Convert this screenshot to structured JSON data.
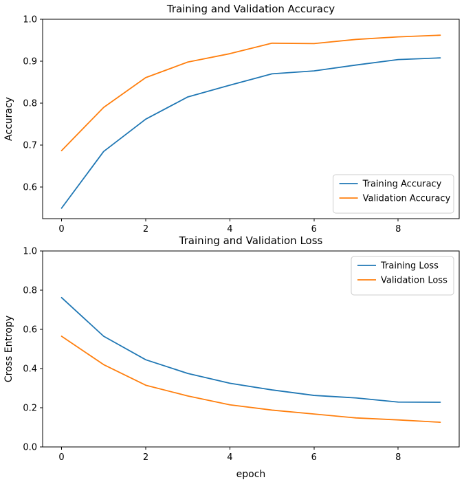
{
  "figure": {
    "background": "#ffffff"
  },
  "chart_data": [
    {
      "id": "accuracy",
      "type": "line",
      "title": "Training and Validation Accuracy",
      "xlabel": "",
      "ylabel": "Accuracy",
      "x": [
        0,
        1,
        2,
        3,
        4,
        5,
        6,
        7,
        8,
        9
      ],
      "series": [
        {
          "name": "Training Accuracy",
          "color": "#1f77b4",
          "values": [
            0.55,
            0.685,
            0.762,
            0.815,
            0.843,
            0.87,
            0.877,
            0.891,
            0.904,
            0.908
          ]
        },
        {
          "name": "Validation Accuracy",
          "color": "#ff7f0e",
          "values": [
            0.687,
            0.79,
            0.861,
            0.898,
            0.918,
            0.943,
            0.942,
            0.952,
            0.958,
            0.962
          ]
        }
      ],
      "xlim": [
        -0.45,
        9.45
      ],
      "ylim": [
        0.525,
        1.0
      ],
      "xticks": {
        "values": [
          0,
          2,
          4,
          6,
          8
        ],
        "labels": [
          "0",
          "2",
          "4",
          "6",
          "8"
        ]
      },
      "yticks": {
        "values": [
          0.6,
          0.7,
          0.8,
          0.9,
          1.0
        ],
        "labels": [
          "0.6",
          "0.7",
          "0.8",
          "0.9",
          "1.0"
        ]
      },
      "legend": "lower right",
      "grid": false
    },
    {
      "id": "loss",
      "type": "line",
      "title": "Training and Validation Loss",
      "xlabel": "epoch",
      "ylabel": "Cross Entropy",
      "x": [
        0,
        1,
        2,
        3,
        4,
        5,
        6,
        7,
        8,
        9
      ],
      "series": [
        {
          "name": "Training Loss",
          "color": "#1f77b4",
          "values": [
            0.762,
            0.565,
            0.445,
            0.375,
            0.325,
            0.291,
            0.263,
            0.25,
            0.229,
            0.228
          ]
        },
        {
          "name": "Validation Loss",
          "color": "#ff7f0e",
          "values": [
            0.565,
            0.42,
            0.315,
            0.26,
            0.215,
            0.188,
            0.168,
            0.148,
            0.138,
            0.126
          ]
        }
      ],
      "xlim": [
        -0.45,
        9.45
      ],
      "ylim": [
        0.0,
        1.0
      ],
      "xticks": {
        "values": [
          0,
          2,
          4,
          6,
          8
        ],
        "labels": [
          "0",
          "2",
          "4",
          "6",
          "8"
        ]
      },
      "yticks": {
        "values": [
          0.0,
          0.2,
          0.4,
          0.6,
          0.8,
          1.0
        ],
        "labels": [
          "0.0",
          "0.2",
          "0.4",
          "0.6",
          "0.8",
          "1.0"
        ]
      },
      "legend": "upper right",
      "grid": false
    }
  ]
}
